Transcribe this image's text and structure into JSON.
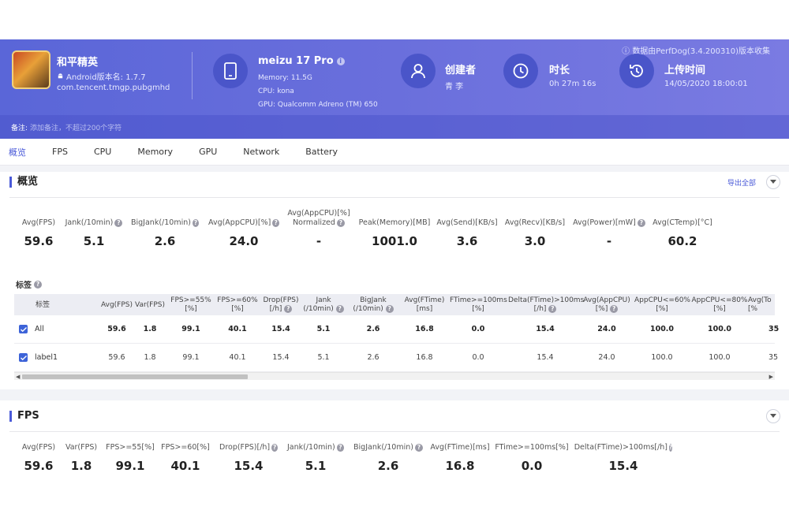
{
  "header": {
    "perf_note": "数据由PerfDog(3.4.200310)版本收集",
    "app": {
      "name": "和平精英",
      "version": "Android版本名: 1.7.7",
      "package": "com.tencent.tmgp.pubgmhd"
    },
    "device": {
      "name": "meizu 17 Pro",
      "memory": "Memory: 11.5G",
      "cpu": "CPU: kona",
      "gpu": "GPU: Qualcomm Adreno (TM) 650"
    },
    "creator": {
      "label": "创建者",
      "value": "青 李"
    },
    "duration": {
      "label": "时长",
      "value": "0h 27m 16s"
    },
    "upload": {
      "label": "上传时间",
      "value": "14/05/2020 18:00:01"
    },
    "note_label": "备注:",
    "note_placeholder": "添加备注，不超过200个字符"
  },
  "tabs": [
    "概览",
    "FPS",
    "CPU",
    "Memory",
    "GPU",
    "Network",
    "Battery"
  ],
  "overview": {
    "title": "概览",
    "export_label": "导出全部",
    "stats": [
      {
        "label": "Avg(FPS)",
        "value": "59.6"
      },
      {
        "label": "Jank(/10min)",
        "value": "5.1"
      },
      {
        "label": "BigJank(/10min)",
        "value": "2.6"
      },
      {
        "label": "Avg(AppCPU)[%]",
        "value": "24.0"
      },
      {
        "label1": "Avg(AppCPU)[%]",
        "label2": "Normalized",
        "value": "-"
      },
      {
        "label": "Peak(Memory)[MB]",
        "value": "1001.0"
      },
      {
        "label": "Avg(Send)[KB/s]",
        "value": "3.6"
      },
      {
        "label": "Avg(Recv)[KB/s]",
        "value": "3.0"
      },
      {
        "label": "Avg(Power)[mW]",
        "value": "-"
      },
      {
        "label": "Avg(CTemp)[°C]",
        "value": "60.2"
      }
    ],
    "labels_title": "标签",
    "table": {
      "headers": [
        [
          "标签",
          ""
        ],
        [
          "Avg(FPS)",
          ""
        ],
        [
          "Var(FPS)",
          ""
        ],
        [
          "FPS>=55%",
          "[%]"
        ],
        [
          "FPS>=60%",
          "[%]"
        ],
        [
          "Drop(FPS)",
          "[/h]"
        ],
        [
          "Jank",
          "(/10min)"
        ],
        [
          "BigJank",
          "(/10min)"
        ],
        [
          "Avg(FTime)",
          "[ms]"
        ],
        [
          "FTime>=100ms",
          "[%]"
        ],
        [
          "Delta(FTime)>100ms",
          "[/h]"
        ],
        [
          "Avg(AppCPU)",
          "[%]"
        ],
        [
          "AppCPU<=60%",
          "[%]"
        ],
        [
          "AppCPU<=80%",
          "[%]"
        ],
        [
          "Avg(To",
          "[%"
        ]
      ],
      "rows": [
        {
          "name": "All",
          "values": [
            "59.6",
            "1.8",
            "99.1",
            "40.1",
            "15.4",
            "5.1",
            "2.6",
            "16.8",
            "0.0",
            "15.4",
            "24.0",
            "100.0",
            "100.0",
            "35"
          ]
        },
        {
          "name": "label1",
          "values": [
            "59.6",
            "1.8",
            "99.1",
            "40.1",
            "15.4",
            "5.1",
            "2.6",
            "16.8",
            "0.0",
            "15.4",
            "24.0",
            "100.0",
            "100.0",
            "35"
          ]
        }
      ]
    }
  },
  "fps_section": {
    "title": "FPS",
    "stats": [
      {
        "label": "Avg(FPS)",
        "value": "59.6"
      },
      {
        "label": "Var(FPS)",
        "value": "1.8"
      },
      {
        "label": "FPS>=55[%]",
        "value": "99.1"
      },
      {
        "label": "FPS>=60[%]",
        "value": "40.1"
      },
      {
        "label": "Drop(FPS)[/h]",
        "value": "15.4"
      },
      {
        "label": "Jank(/10min)",
        "value": "5.1"
      },
      {
        "label": "BigJank(/10min)",
        "value": "2.6"
      },
      {
        "label": "Avg(FTime)[ms]",
        "value": "16.8"
      },
      {
        "label": "FTime>=100ms[%]",
        "value": "0.0"
      },
      {
        "label": "Delta(FTime)>100ms[/h]",
        "value": "15.4"
      }
    ]
  },
  "colors": {
    "header_start": "#5a66d8",
    "accent": "#4a5ad8",
    "icon_circle": "#4a55c9"
  }
}
